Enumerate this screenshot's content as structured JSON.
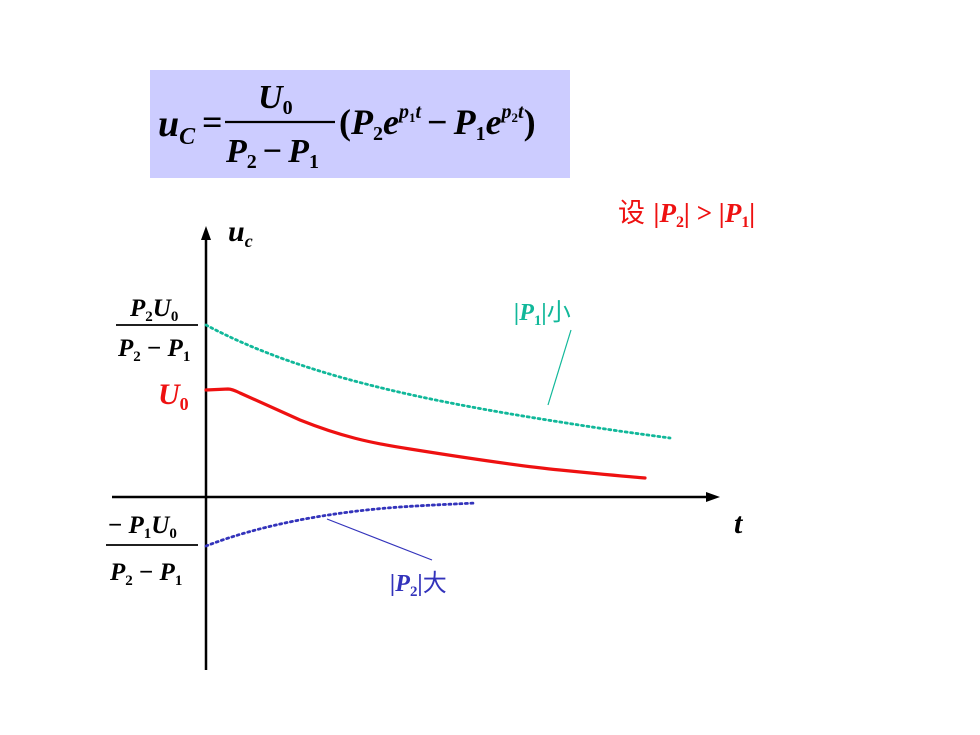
{
  "formula": {
    "lhs_var": "u",
    "lhs_sub": "C",
    "equals": "=",
    "num_var": "U",
    "num_sub": "0",
    "den_p2": "P",
    "den_p2_sub": "2",
    "den_minus": "−",
    "den_p1": "P",
    "den_p1_sub": "1",
    "open_paren": "(",
    "term1_P": "P",
    "term1_P_sub": "2",
    "term1_e": "e",
    "term1_exp_p": "p",
    "term1_exp_sub": "1",
    "term1_exp_t": "t",
    "minus": "−",
    "term2_P": "P",
    "term2_P_sub": "1",
    "term2_e": "e",
    "term2_exp_p": "p",
    "term2_exp_sub": "2",
    "term2_exp_t": "t",
    "close_paren": ")"
  },
  "assumption": {
    "prefix": "设 ",
    "lhs": "|P",
    "lhs_sub": "2",
    "lhs_close": "|",
    "op": " > ",
    "rhs": "|P",
    "rhs_sub": "1",
    "rhs_close": "|"
  },
  "axes": {
    "y_label": "u",
    "y_label_sub": "c",
    "x_label": "t"
  },
  "y_markers": {
    "upper": {
      "num_P": "P",
      "num_P_sub": "2",
      "num_U": "U",
      "num_U_sub": "0",
      "den_P2": "P",
      "den_P2_sub": "2",
      "den_minus": " − ",
      "den_P1": "P",
      "den_P1_sub": "1"
    },
    "u0": {
      "var": "U",
      "sub": "0"
    },
    "lower": {
      "num_minus": "− ",
      "num_P": "P",
      "num_P_sub": "1",
      "num_U": "U",
      "num_U_sub": "0",
      "den_P2": "P",
      "den_P2_sub": "2",
      "den_minus": " − ",
      "den_P1": "P",
      "den_P1_sub": "1"
    }
  },
  "annotations": {
    "p1_small": {
      "open": "|P",
      "sub": "1",
      "close": "|",
      "word": "小"
    },
    "p2_large": {
      "open": "|P",
      "sub": "2",
      "close": "|",
      "word": "大"
    }
  },
  "colors": {
    "uc_curve": "#ee1111",
    "p1_curve": "#11b89a",
    "p2_curve": "#3333bb",
    "formula_bg": "#ccccff",
    "axis": "#000000"
  }
}
